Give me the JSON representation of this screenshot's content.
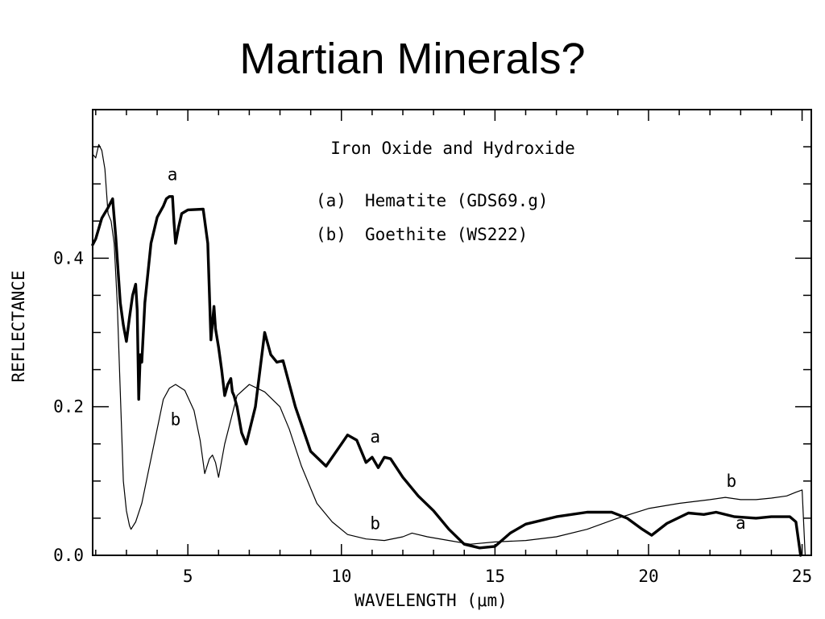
{
  "slide": {
    "title": "Martian Minerals?"
  },
  "chart_data": {
    "type": "line",
    "title": "Iron Oxide and Hydroxide",
    "xlabel": "WAVELENGTH (μm)",
    "ylabel": "REFLECTANCE",
    "xlim": [
      1.9,
      25.3
    ],
    "ylim": [
      0.0,
      0.6
    ],
    "x_ticks": [
      5,
      10,
      15,
      20,
      25
    ],
    "y_ticks": [
      0.0,
      0.2,
      0.4
    ],
    "y_tick_labels": [
      "0.0",
      "0.2",
      "0.4"
    ],
    "grid": false,
    "legend": [
      {
        "key": "(a)",
        "text": "Hematite (GDS69.g)"
      },
      {
        "key": "(b)",
        "text": "Goethite (WS222)"
      }
    ],
    "series": [
      {
        "name": "a",
        "style": "thick",
        "points": [
          [
            1.9,
            0.418
          ],
          [
            2.0,
            0.426
          ],
          [
            2.2,
            0.454
          ],
          [
            2.4,
            0.468
          ],
          [
            2.55,
            0.48
          ],
          [
            2.65,
            0.43
          ],
          [
            2.75,
            0.37
          ],
          [
            2.8,
            0.34
          ],
          [
            2.9,
            0.31
          ],
          [
            3.0,
            0.288
          ],
          [
            3.1,
            0.32
          ],
          [
            3.2,
            0.35
          ],
          [
            3.3,
            0.365
          ],
          [
            3.35,
            0.33
          ],
          [
            3.4,
            0.21
          ],
          [
            3.45,
            0.27
          ],
          [
            3.5,
            0.26
          ],
          [
            3.6,
            0.34
          ],
          [
            3.8,
            0.42
          ],
          [
            4.0,
            0.455
          ],
          [
            4.2,
            0.47
          ],
          [
            4.3,
            0.48
          ],
          [
            4.4,
            0.483
          ],
          [
            4.5,
            0.483
          ],
          [
            4.55,
            0.448
          ],
          [
            4.6,
            0.42
          ],
          [
            4.7,
            0.442
          ],
          [
            4.8,
            0.46
          ],
          [
            5.0,
            0.465
          ],
          [
            5.5,
            0.466
          ],
          [
            5.65,
            0.42
          ],
          [
            5.75,
            0.29
          ],
          [
            5.85,
            0.335
          ],
          [
            5.9,
            0.305
          ],
          [
            6.0,
            0.28
          ],
          [
            6.1,
            0.25
          ],
          [
            6.2,
            0.215
          ],
          [
            6.3,
            0.23
          ],
          [
            6.4,
            0.238
          ],
          [
            6.45,
            0.22
          ],
          [
            6.5,
            0.215
          ],
          [
            6.6,
            0.2
          ],
          [
            6.75,
            0.165
          ],
          [
            6.9,
            0.15
          ],
          [
            7.2,
            0.2
          ],
          [
            7.5,
            0.3
          ],
          [
            7.7,
            0.27
          ],
          [
            7.9,
            0.26
          ],
          [
            8.1,
            0.262
          ],
          [
            8.5,
            0.2
          ],
          [
            9.0,
            0.14
          ],
          [
            9.5,
            0.12
          ],
          [
            10.0,
            0.15
          ],
          [
            10.2,
            0.162
          ],
          [
            10.5,
            0.155
          ],
          [
            10.8,
            0.125
          ],
          [
            11.0,
            0.132
          ],
          [
            11.2,
            0.118
          ],
          [
            11.4,
            0.132
          ],
          [
            11.6,
            0.13
          ],
          [
            12.0,
            0.105
          ],
          [
            12.5,
            0.08
          ],
          [
            13.0,
            0.06
          ],
          [
            13.5,
            0.035
          ],
          [
            14.0,
            0.015
          ],
          [
            14.5,
            0.01
          ],
          [
            15.0,
            0.012
          ],
          [
            15.5,
            0.03
          ],
          [
            16.0,
            0.042
          ],
          [
            17.0,
            0.052
          ],
          [
            18.0,
            0.058
          ],
          [
            18.8,
            0.058
          ],
          [
            19.3,
            0.05
          ],
          [
            19.8,
            0.035
          ],
          [
            20.1,
            0.027
          ],
          [
            20.6,
            0.043
          ],
          [
            21.3,
            0.057
          ],
          [
            21.8,
            0.055
          ],
          [
            22.2,
            0.058
          ],
          [
            22.8,
            0.052
          ],
          [
            23.5,
            0.05
          ],
          [
            24.0,
            0.052
          ],
          [
            24.6,
            0.052
          ],
          [
            24.8,
            0.045
          ],
          [
            24.95,
            0.0
          ]
        ],
        "labels": [
          {
            "text": "a",
            "x": 4.5,
            "y": 0.505
          },
          {
            "text": "a",
            "x": 11.1,
            "y": 0.152
          },
          {
            "text": "a",
            "x": 23.0,
            "y": 0.036
          }
        ]
      },
      {
        "name": "b",
        "style": "thin",
        "points": [
          [
            1.9,
            0.54
          ],
          [
            2.0,
            0.535
          ],
          [
            2.1,
            0.553
          ],
          [
            2.2,
            0.545
          ],
          [
            2.3,
            0.52
          ],
          [
            2.4,
            0.46
          ],
          [
            2.5,
            0.45
          ],
          [
            2.6,
            0.42
          ],
          [
            2.7,
            0.34
          ],
          [
            2.8,
            0.22
          ],
          [
            2.9,
            0.1
          ],
          [
            3.0,
            0.06
          ],
          [
            3.1,
            0.04
          ],
          [
            3.15,
            0.035
          ],
          [
            3.3,
            0.045
          ],
          [
            3.5,
            0.07
          ],
          [
            3.8,
            0.13
          ],
          [
            4.0,
            0.17
          ],
          [
            4.2,
            0.21
          ],
          [
            4.4,
            0.225
          ],
          [
            4.6,
            0.23
          ],
          [
            4.9,
            0.222
          ],
          [
            5.2,
            0.195
          ],
          [
            5.4,
            0.155
          ],
          [
            5.55,
            0.11
          ],
          [
            5.7,
            0.13
          ],
          [
            5.8,
            0.135
          ],
          [
            5.9,
            0.125
          ],
          [
            6.0,
            0.105
          ],
          [
            6.2,
            0.15
          ],
          [
            6.6,
            0.215
          ],
          [
            7.0,
            0.23
          ],
          [
            7.5,
            0.22
          ],
          [
            8.0,
            0.2
          ],
          [
            8.3,
            0.17
          ],
          [
            8.7,
            0.12
          ],
          [
            9.2,
            0.07
          ],
          [
            9.7,
            0.045
          ],
          [
            10.2,
            0.028
          ],
          [
            10.8,
            0.022
          ],
          [
            11.4,
            0.02
          ],
          [
            12.0,
            0.025
          ],
          [
            12.3,
            0.03
          ],
          [
            12.8,
            0.025
          ],
          [
            13.5,
            0.02
          ],
          [
            14.2,
            0.015
          ],
          [
            15.0,
            0.018
          ],
          [
            16.0,
            0.02
          ],
          [
            17.0,
            0.025
          ],
          [
            18.0,
            0.035
          ],
          [
            19.0,
            0.05
          ],
          [
            20.0,
            0.063
          ],
          [
            21.0,
            0.07
          ],
          [
            22.0,
            0.075
          ],
          [
            22.5,
            0.078
          ],
          [
            23.0,
            0.075
          ],
          [
            23.5,
            0.075
          ],
          [
            24.0,
            0.077
          ],
          [
            24.5,
            0.08
          ],
          [
            24.8,
            0.085
          ],
          [
            25.0,
            0.088
          ],
          [
            25.1,
            0.0
          ]
        ],
        "labels": [
          {
            "text": "b",
            "x": 4.6,
            "y": 0.175
          },
          {
            "text": "b",
            "x": 11.1,
            "y": 0.035
          },
          {
            "text": "b",
            "x": 22.7,
            "y": 0.092
          }
        ]
      }
    ]
  }
}
